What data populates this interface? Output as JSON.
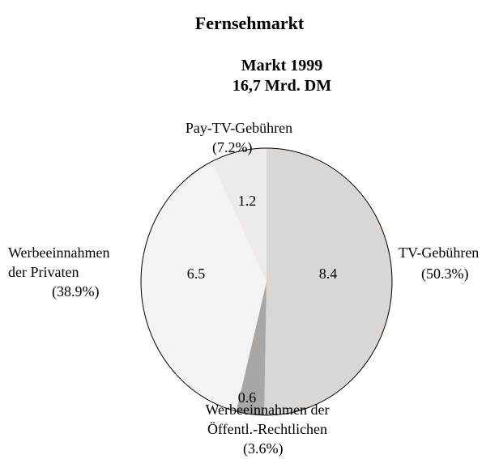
{
  "chart_data": {
    "type": "pie",
    "title": "Fernsehmarkt",
    "subtitle": [
      "Markt 1999",
      "16,7 Mrd. DM"
    ],
    "categories": [
      "TV-Gebühren",
      "Werbeeinnahmen der\nÖffentl.-Rechtlichen",
      "Werbeeinnahmen\nder Privaten",
      "Pay-TV-Gebühren"
    ],
    "values": [
      8.4,
      0.6,
      6.5,
      1.2
    ],
    "percentages": [
      50.3,
      3.6,
      38.9,
      7.2
    ],
    "percent_labels": [
      "(50.3%)",
      "(3.6%)",
      "(38.9%)",
      "(7.2%)"
    ],
    "colors": [
      "#d9d6d4",
      "#a9a6a4",
      "#f3f3f3",
      "#efeaea"
    ]
  }
}
